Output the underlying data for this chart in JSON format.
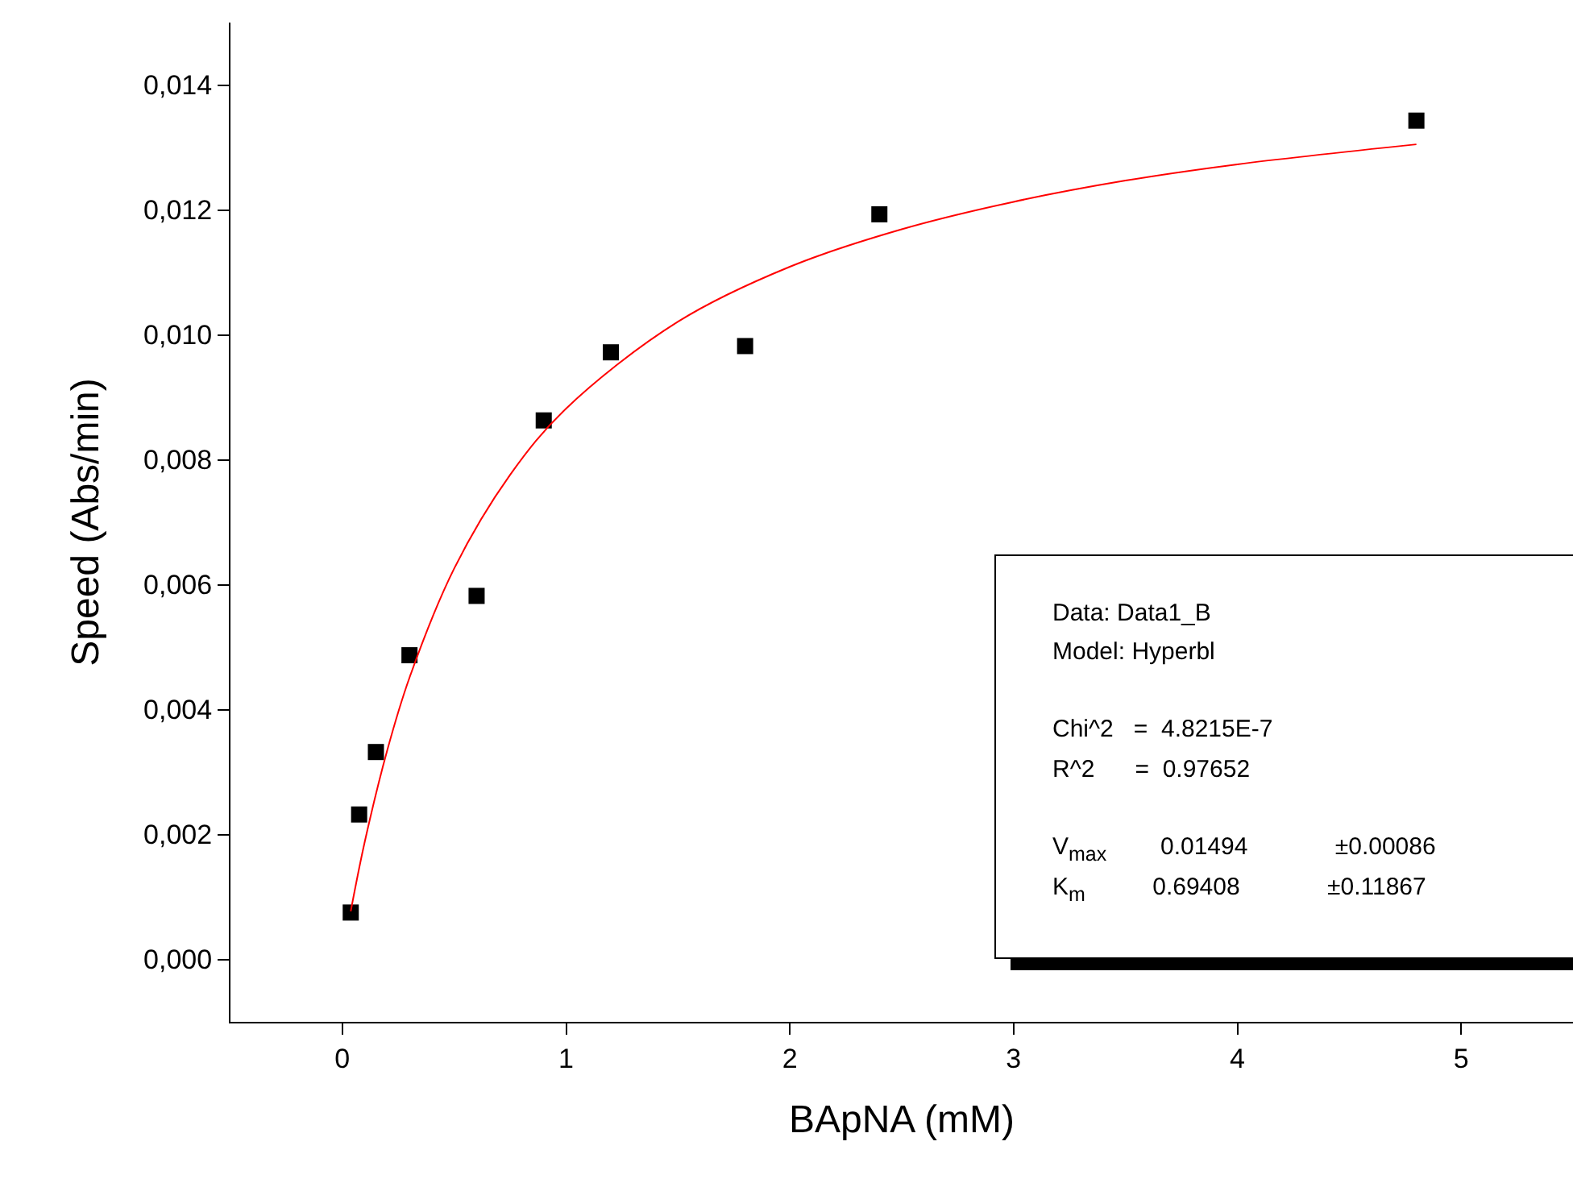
{
  "chart_data": {
    "type": "scatter",
    "xlabel": "BApNA (mM)",
    "ylabel": "Speed (Abs/min)",
    "xlim": [
      -0.5,
      5.5
    ],
    "xticks": [
      0,
      1,
      2,
      3,
      4,
      5
    ],
    "ylim": [
      -0.001,
      0.015
    ],
    "yticks": [
      {
        "value": 0,
        "label": "0,000"
      },
      {
        "value": 0.002,
        "label": "0,002"
      },
      {
        "value": 0.004,
        "label": "0,004"
      },
      {
        "value": 0.006,
        "label": "0,006"
      },
      {
        "value": 0.008,
        "label": "0,008"
      },
      {
        "value": 0.01,
        "label": "0,010"
      },
      {
        "value": 0.012,
        "label": "0,012"
      },
      {
        "value": 0.014,
        "label": "0,014"
      }
    ],
    "grid": false,
    "series": [
      {
        "marker": "square",
        "color": "#000000",
        "x": [
          0.0375,
          0.075,
          0.15,
          0.3,
          0.6,
          0.9,
          1.2,
          1.8,
          2.4,
          4.8
        ],
        "values": [
          0.00075,
          0.00232,
          0.00332,
          0.00487,
          0.00582,
          0.00863,
          0.00972,
          0.00982,
          0.01193,
          0.01343
        ]
      },
      {
        "type": "line",
        "marker": "none",
        "color": "#ff0000",
        "x": [
          0.0375,
          0.1,
          0.2,
          0.3,
          0.5,
          0.75,
          1,
          1.5,
          2,
          2.5,
          3,
          3.5,
          4,
          4.8
        ],
        "values": [
          0.00077,
          0.00188,
          0.00334,
          0.00451,
          0.00626,
          0.00776,
          0.00882,
          0.01021,
          0.01109,
          0.01169,
          0.01213,
          0.01247,
          0.01273,
          0.01305
        ]
      }
    ],
    "annotations": [
      "Data: Data1_B",
      "Model: Hyperbl",
      "Chi^2   =  4.8215E-7",
      "R^2      =  0.97652",
      "V$_{max}$        0.01494             ±0.00086",
      "K$_{m}$          0.69408             ±0.11867"
    ]
  }
}
